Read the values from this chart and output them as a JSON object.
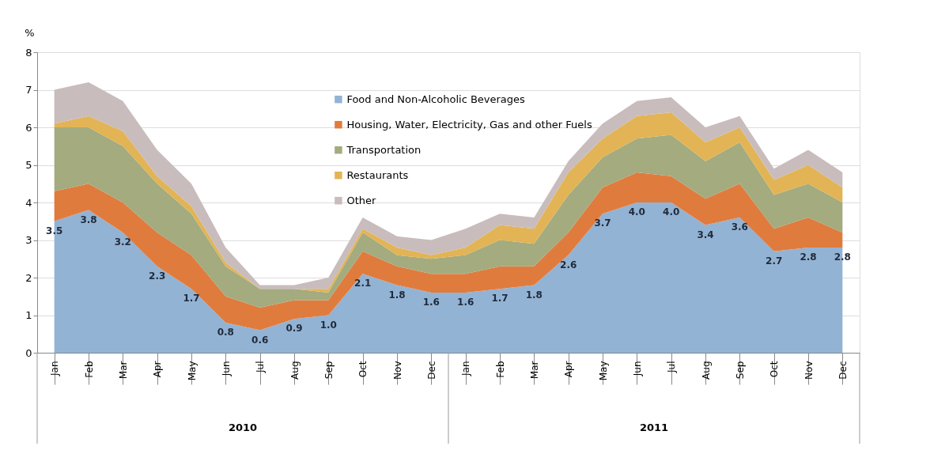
{
  "chart_data": {
    "type": "area",
    "stacked": true,
    "ylabel": "%",
    "categories": [
      "Jan",
      "Feb",
      "Mar",
      "Apr",
      "May",
      "Jun",
      "Jul",
      "Aug",
      "Sep",
      "Oct",
      "Nov",
      "Dec",
      "Jan",
      "Feb",
      "Mar",
      "Apr",
      "May",
      "Jun",
      "Jul",
      "Aug",
      "Sep",
      "Oct",
      "Nov",
      "Dec"
    ],
    "series": [
      {
        "name": "Food and Non-Alcoholic Beverages",
        "color": "#93b3d4",
        "values": [
          3.5,
          3.8,
          3.2,
          2.3,
          1.7,
          0.8,
          0.6,
          0.9,
          1.0,
          2.1,
          1.8,
          1.6,
          1.6,
          1.7,
          1.8,
          2.6,
          3.7,
          4.0,
          4.0,
          3.4,
          3.6,
          2.7,
          2.8,
          2.8
        ],
        "value_labels": [
          "3.5",
          "3.8",
          "3.2",
          "2.3",
          "1.7",
          "0.8",
          "0.6",
          "0.9",
          "1.0",
          "2.1",
          "1.8",
          "1.6",
          "1.6",
          "1.7",
          "1.8",
          "2.6",
          "3.7",
          "4.0",
          "4.0",
          "3.4",
          "3.6",
          "2.7",
          "2.8",
          "2.8"
        ]
      },
      {
        "name": "Housing, Water, Electricity, Gas and other Fuels",
        "color": "#e07b3e",
        "values": [
          0.8,
          0.7,
          0.8,
          0.9,
          0.9,
          0.7,
          0.6,
          0.5,
          0.4,
          0.6,
          0.5,
          0.5,
          0.5,
          0.6,
          0.5,
          0.6,
          0.7,
          0.8,
          0.7,
          0.7,
          0.9,
          0.6,
          0.8,
          0.4
        ]
      },
      {
        "name": "Transportation",
        "color": "#a3ab7f",
        "values": [
          1.7,
          1.5,
          1.5,
          1.3,
          1.1,
          0.8,
          0.5,
          0.3,
          0.2,
          0.5,
          0.3,
          0.4,
          0.5,
          0.7,
          0.6,
          1.0,
          0.8,
          0.9,
          1.1,
          1.0,
          1.1,
          0.9,
          0.9,
          0.8
        ]
      },
      {
        "name": "Restaurants",
        "color": "#e2b455",
        "values": [
          0.1,
          0.3,
          0.4,
          0.2,
          0.2,
          0.1,
          0.0,
          0.0,
          0.1,
          0.1,
          0.2,
          0.1,
          0.2,
          0.4,
          0.4,
          0.6,
          0.5,
          0.6,
          0.6,
          0.5,
          0.4,
          0.4,
          0.5,
          0.4
        ]
      },
      {
        "name": "Other",
        "color": "#c9bcbc",
        "values": [
          0.9,
          0.9,
          0.8,
          0.7,
          0.6,
          0.4,
          0.1,
          0.1,
          0.3,
          0.3,
          0.3,
          0.4,
          0.5,
          0.3,
          0.3,
          0.3,
          0.4,
          0.4,
          0.4,
          0.4,
          0.3,
          0.3,
          0.4,
          0.4
        ]
      }
    ],
    "ylim": [
      0,
      8
    ],
    "yticks": [
      0,
      1,
      2,
      3,
      4,
      5,
      6,
      7,
      8
    ],
    "grid": "y",
    "legend": "top",
    "annotations": [
      "2010",
      "2011"
    ]
  }
}
